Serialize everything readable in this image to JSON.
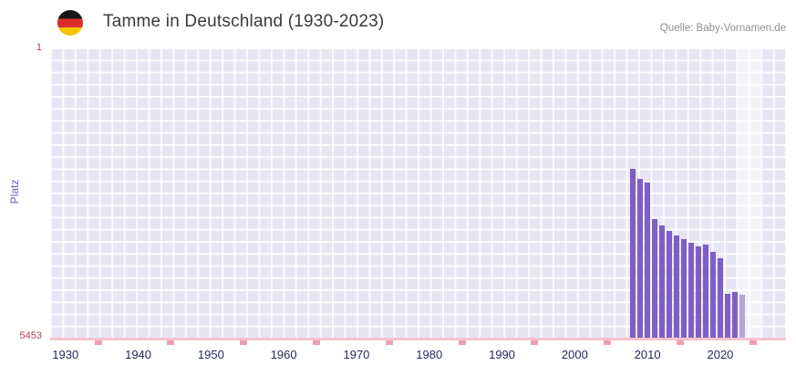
{
  "header": {
    "title": "Tamme in Deutschland (1930-2023)",
    "source": "Quelle: Baby-Vornamen.de",
    "flag_icon": "german-flag-icon"
  },
  "chart_data": {
    "type": "bar",
    "title": "Tamme in Deutschland (1930-2023)",
    "ylabel": "Platz",
    "y_axis": {
      "top_label": "1",
      "bottom_label": "5453",
      "min": 1,
      "max": 5453,
      "inverted": true
    },
    "x_axis": {
      "tick_labels": [
        "1930",
        "1940",
        "1950",
        "1960",
        "1970",
        "1980",
        "1990",
        "2000",
        "2010",
        "2020"
      ],
      "minor_tick_years": [
        1934.5,
        1944.5,
        1954.5,
        1964.5,
        1974.5,
        1984.5,
        1994.5,
        2004.5,
        2014.5,
        2024.5
      ],
      "range_start": 1930,
      "range_end": 2023
    },
    "bars": [
      {
        "year": 2008,
        "rank": 2280
      },
      {
        "year": 2009,
        "rank": 2470
      },
      {
        "year": 2010,
        "rank": 2540
      },
      {
        "year": 2011,
        "rank": 3225
      },
      {
        "year": 2012,
        "rank": 3345
      },
      {
        "year": 2013,
        "rank": 3445
      },
      {
        "year": 2014,
        "rank": 3530
      },
      {
        "year": 2015,
        "rank": 3600
      },
      {
        "year": 2016,
        "rank": 3670
      },
      {
        "year": 2017,
        "rank": 3740
      },
      {
        "year": 2018,
        "rank": 3705
      },
      {
        "year": 2019,
        "rank": 3840
      },
      {
        "year": 2020,
        "rank": 3960
      },
      {
        "year": 2021,
        "rank": 4630
      },
      {
        "year": 2022,
        "rank": 4595
      },
      {
        "year": 2023,
        "rank": 4645
      }
    ],
    "highlight_year": 2023,
    "highlight_band": {
      "from": 2022.2,
      "to": 2025.6
    },
    "legend": null,
    "grid": true,
    "colors": {
      "bar": "#7e5fc5",
      "bar_hl": "#b3a4de",
      "plot_bg": "#e7e5f3",
      "grid": "#ffffffcc",
      "axis": "#f5c2ce",
      "tick": "#ee9fb2",
      "xlabel": "#252a5e",
      "ytick": "#b04055",
      "ylabel": "#7160b8",
      "title": "#3a3a3a",
      "source": "#909090"
    }
  }
}
